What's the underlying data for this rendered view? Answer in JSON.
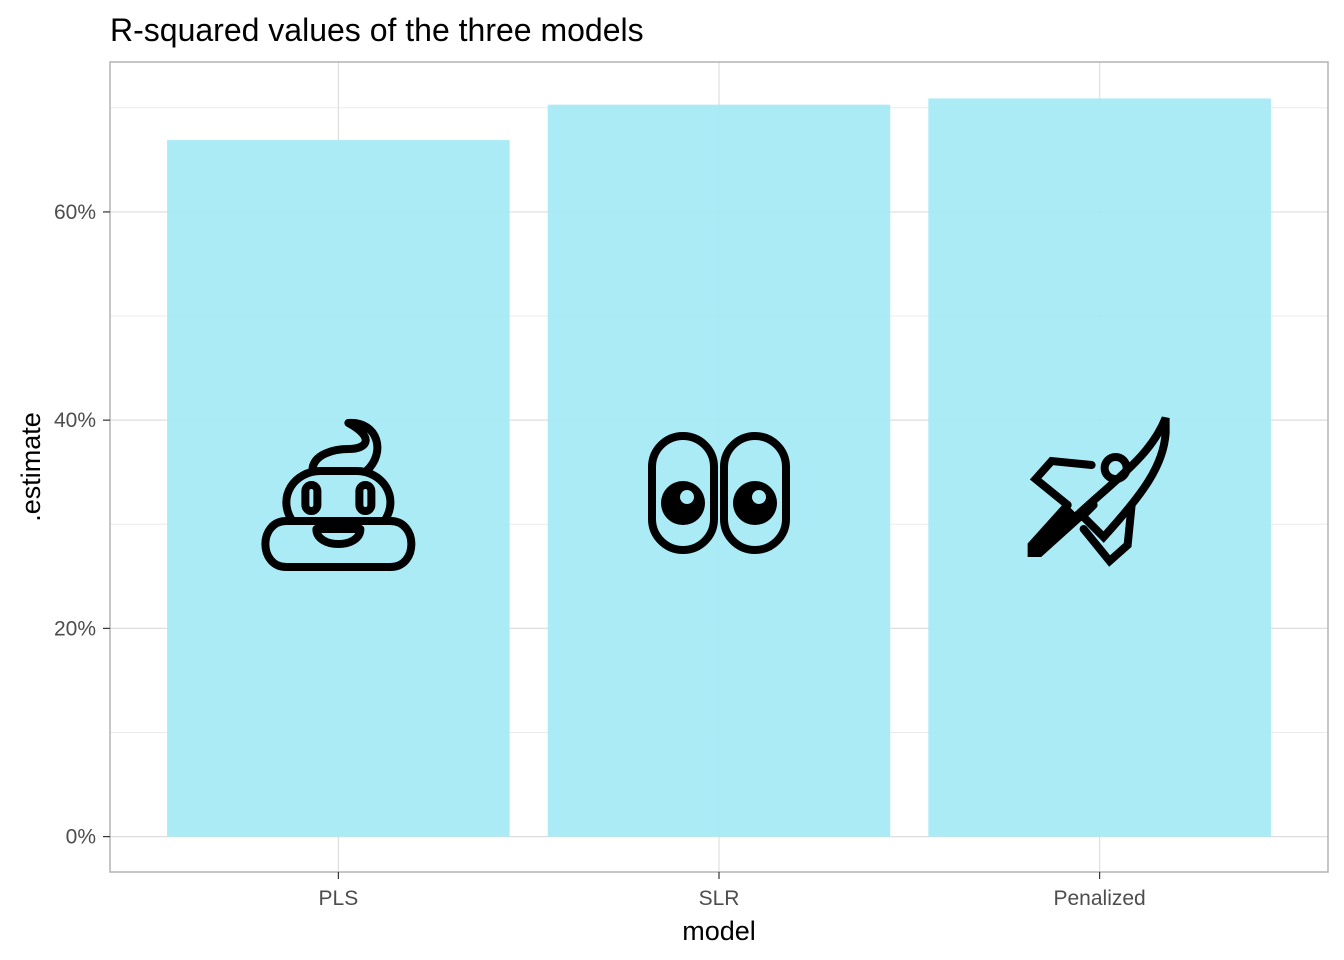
{
  "chart_data": {
    "type": "bar",
    "title": "R-squared values of the three models",
    "xlabel": "model",
    "ylabel": ".estimate",
    "categories": [
      "PLS",
      "SLR",
      "Penalized"
    ],
    "values": [
      0.669,
      0.703,
      0.709
    ],
    "y_tick_values": [
      0,
      0.2,
      0.4,
      0.6
    ],
    "y_tick_labels": [
      "0%",
      "20%",
      "40%",
      "60%"
    ],
    "ylim": [
      -0.034,
      0.744
    ],
    "grid": true,
    "legend": "none",
    "bar_color": "#a6eaf6",
    "icons": [
      "pile-of-poo-icon",
      "eyes-icon",
      "rocket-icon"
    ]
  }
}
